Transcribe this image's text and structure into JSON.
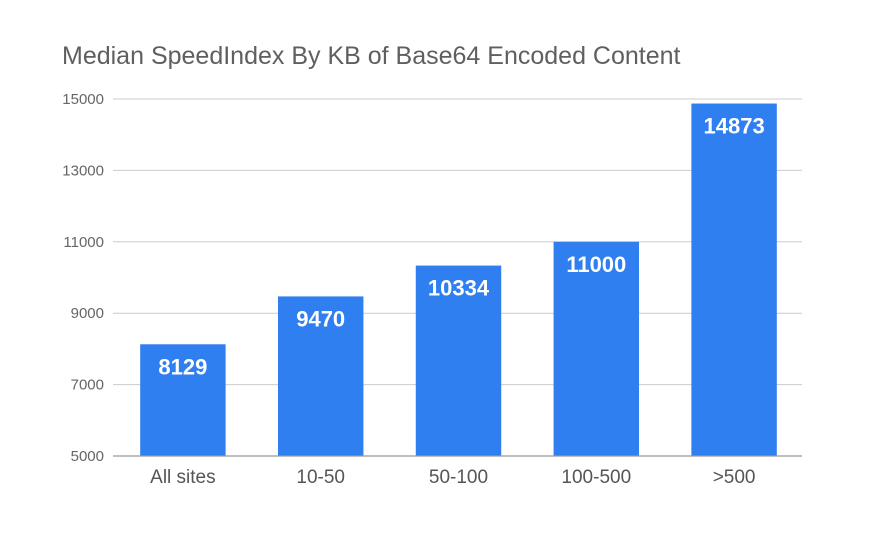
{
  "chart_data": {
    "type": "bar",
    "title": "Median SpeedIndex By KB of Base64 Encoded Content",
    "xlabel": "",
    "ylabel": "",
    "categories": [
      "All sites",
      "10-50",
      "50-100",
      "100-500",
      ">500"
    ],
    "values": [
      8129,
      9470,
      10334,
      11000,
      14873
    ],
    "data_labels": [
      "8129",
      "9470",
      "10334",
      "11000",
      "14873"
    ],
    "ylim": [
      5000,
      15000
    ],
    "yticks": [
      5000,
      7000,
      9000,
      11000,
      13000,
      15000
    ],
    "ytick_labels": [
      "5000",
      "7000",
      "9000",
      "11000",
      "13000",
      "15000"
    ],
    "grid": true,
    "legend": "none",
    "colors": {
      "bar": "#2f7ff0",
      "grid": "#cccccc",
      "axis": "#999999"
    }
  }
}
